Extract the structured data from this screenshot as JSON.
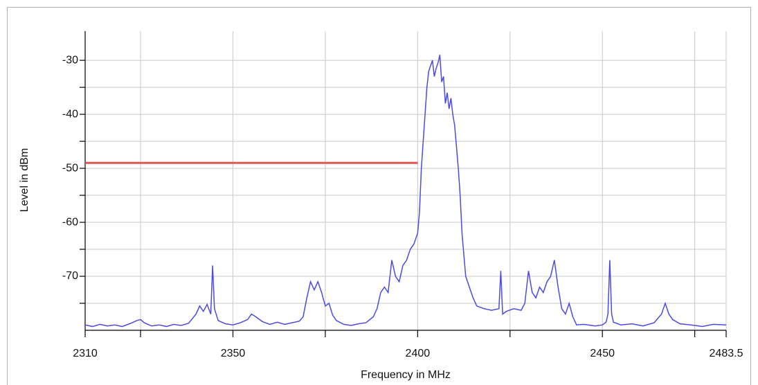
{
  "chart_data": {
    "type": "line",
    "xlabel": "Frequency in MHz",
    "ylabel": "Level in dBm",
    "xlim": [
      2310,
      2483.5
    ],
    "ylim": [
      -80,
      -24.6
    ],
    "xticks": [
      2310,
      2350,
      2400,
      2450,
      2483.5
    ],
    "xminorticks": [
      2325,
      2375,
      2425,
      2475
    ],
    "yticks": [
      -30,
      -40,
      -50,
      -60,
      -70
    ],
    "yminorticks": [
      -35,
      -45,
      -55,
      -65,
      -75
    ],
    "grid": true,
    "threshold": {
      "value": -49,
      "x": [
        2310,
        2400
      ],
      "color": "#e05555"
    },
    "series": [
      {
        "color": "#4a4ae6",
        "x": [
          2310,
          2312,
          2314,
          2316,
          2318,
          2320,
          2322,
          2324,
          2325,
          2326,
          2328,
          2330,
          2332,
          2334,
          2336,
          2338,
          2340,
          2341,
          2342,
          2343,
          2344,
          2344.5,
          2345,
          2346,
          2348,
          2350,
          2352,
          2354,
          2355,
          2356,
          2358,
          2360,
          2362,
          2364,
          2366,
          2368,
          2369,
          2370,
          2371,
          2372,
          2373,
          2374,
          2375,
          2376,
          2377,
          2378,
          2380,
          2382,
          2384,
          2386,
          2388,
          2389,
          2390,
          2391,
          2392,
          2393,
          2394,
          2395,
          2396,
          2397,
          2398,
          2399,
          2400,
          2400.5,
          2401,
          2401.5,
          2402,
          2402.5,
          2403,
          2403.5,
          2404,
          2404.5,
          2405,
          2405.5,
          2406,
          2406.5,
          2407,
          2407.5,
          2408,
          2408.5,
          2409,
          2409.5,
          2410,
          2410.5,
          2411,
          2411.5,
          2412,
          2413,
          2414,
          2415,
          2416,
          2418,
          2420,
          2422,
          2422.5,
          2423,
          2424,
          2426,
          2428,
          2429,
          2430,
          2431,
          2432,
          2433,
          2434,
          2435,
          2436,
          2437,
          2438,
          2439,
          2440,
          2441,
          2442,
          2443,
          2445,
          2448,
          2450,
          2451,
          2451.5,
          2452,
          2452.5,
          2453,
          2455,
          2458,
          2461,
          2464,
          2466,
          2467,
          2468,
          2469,
          2471,
          2474,
          2477,
          2480,
          2483.5
        ],
        "values": [
          -79,
          -79.3,
          -78.9,
          -79.2,
          -79,
          -79.3,
          -78.8,
          -78.2,
          -78,
          -78.6,
          -79.2,
          -79,
          -79.3,
          -78.9,
          -79.1,
          -78.7,
          -77,
          -75.5,
          -76.5,
          -75.2,
          -77,
          -68,
          -76,
          -78.2,
          -78.8,
          -79,
          -78.6,
          -78,
          -77,
          -77.4,
          -78.4,
          -78.9,
          -78.5,
          -78.9,
          -78.6,
          -78.3,
          -77.5,
          -74,
          -71,
          -72.5,
          -71,
          -73,
          -75.5,
          -75,
          -77.2,
          -78.2,
          -78.9,
          -79.1,
          -78.8,
          -78.6,
          -77.5,
          -76,
          -73,
          -72,
          -73,
          -67,
          -70,
          -71,
          -68,
          -67,
          -65,
          -64,
          -62,
          -58,
          -50,
          -45,
          -40,
          -35,
          -32,
          -31,
          -30,
          -33,
          -31.5,
          -30.5,
          -29,
          -34,
          -33,
          -38,
          -36,
          -39,
          -37,
          -40,
          -42,
          -46,
          -50,
          -55,
          -62,
          -70,
          -72,
          -74,
          -75.5,
          -76,
          -76.3,
          -76,
          -69,
          -77,
          -76.5,
          -76,
          -76.3,
          -75,
          -69,
          -73,
          -74,
          -72,
          -73,
          -71,
          -70,
          -67,
          -72,
          -76,
          -77,
          -75,
          -77.5,
          -79,
          -78.9,
          -79.2,
          -79,
          -78.5,
          -77,
          -67,
          -77,
          -78.5,
          -79,
          -78.8,
          -79.2,
          -78.6,
          -77,
          -75,
          -77,
          -78,
          -78.8,
          -79,
          -79.3,
          -78.9,
          -79
        ]
      }
    ]
  }
}
